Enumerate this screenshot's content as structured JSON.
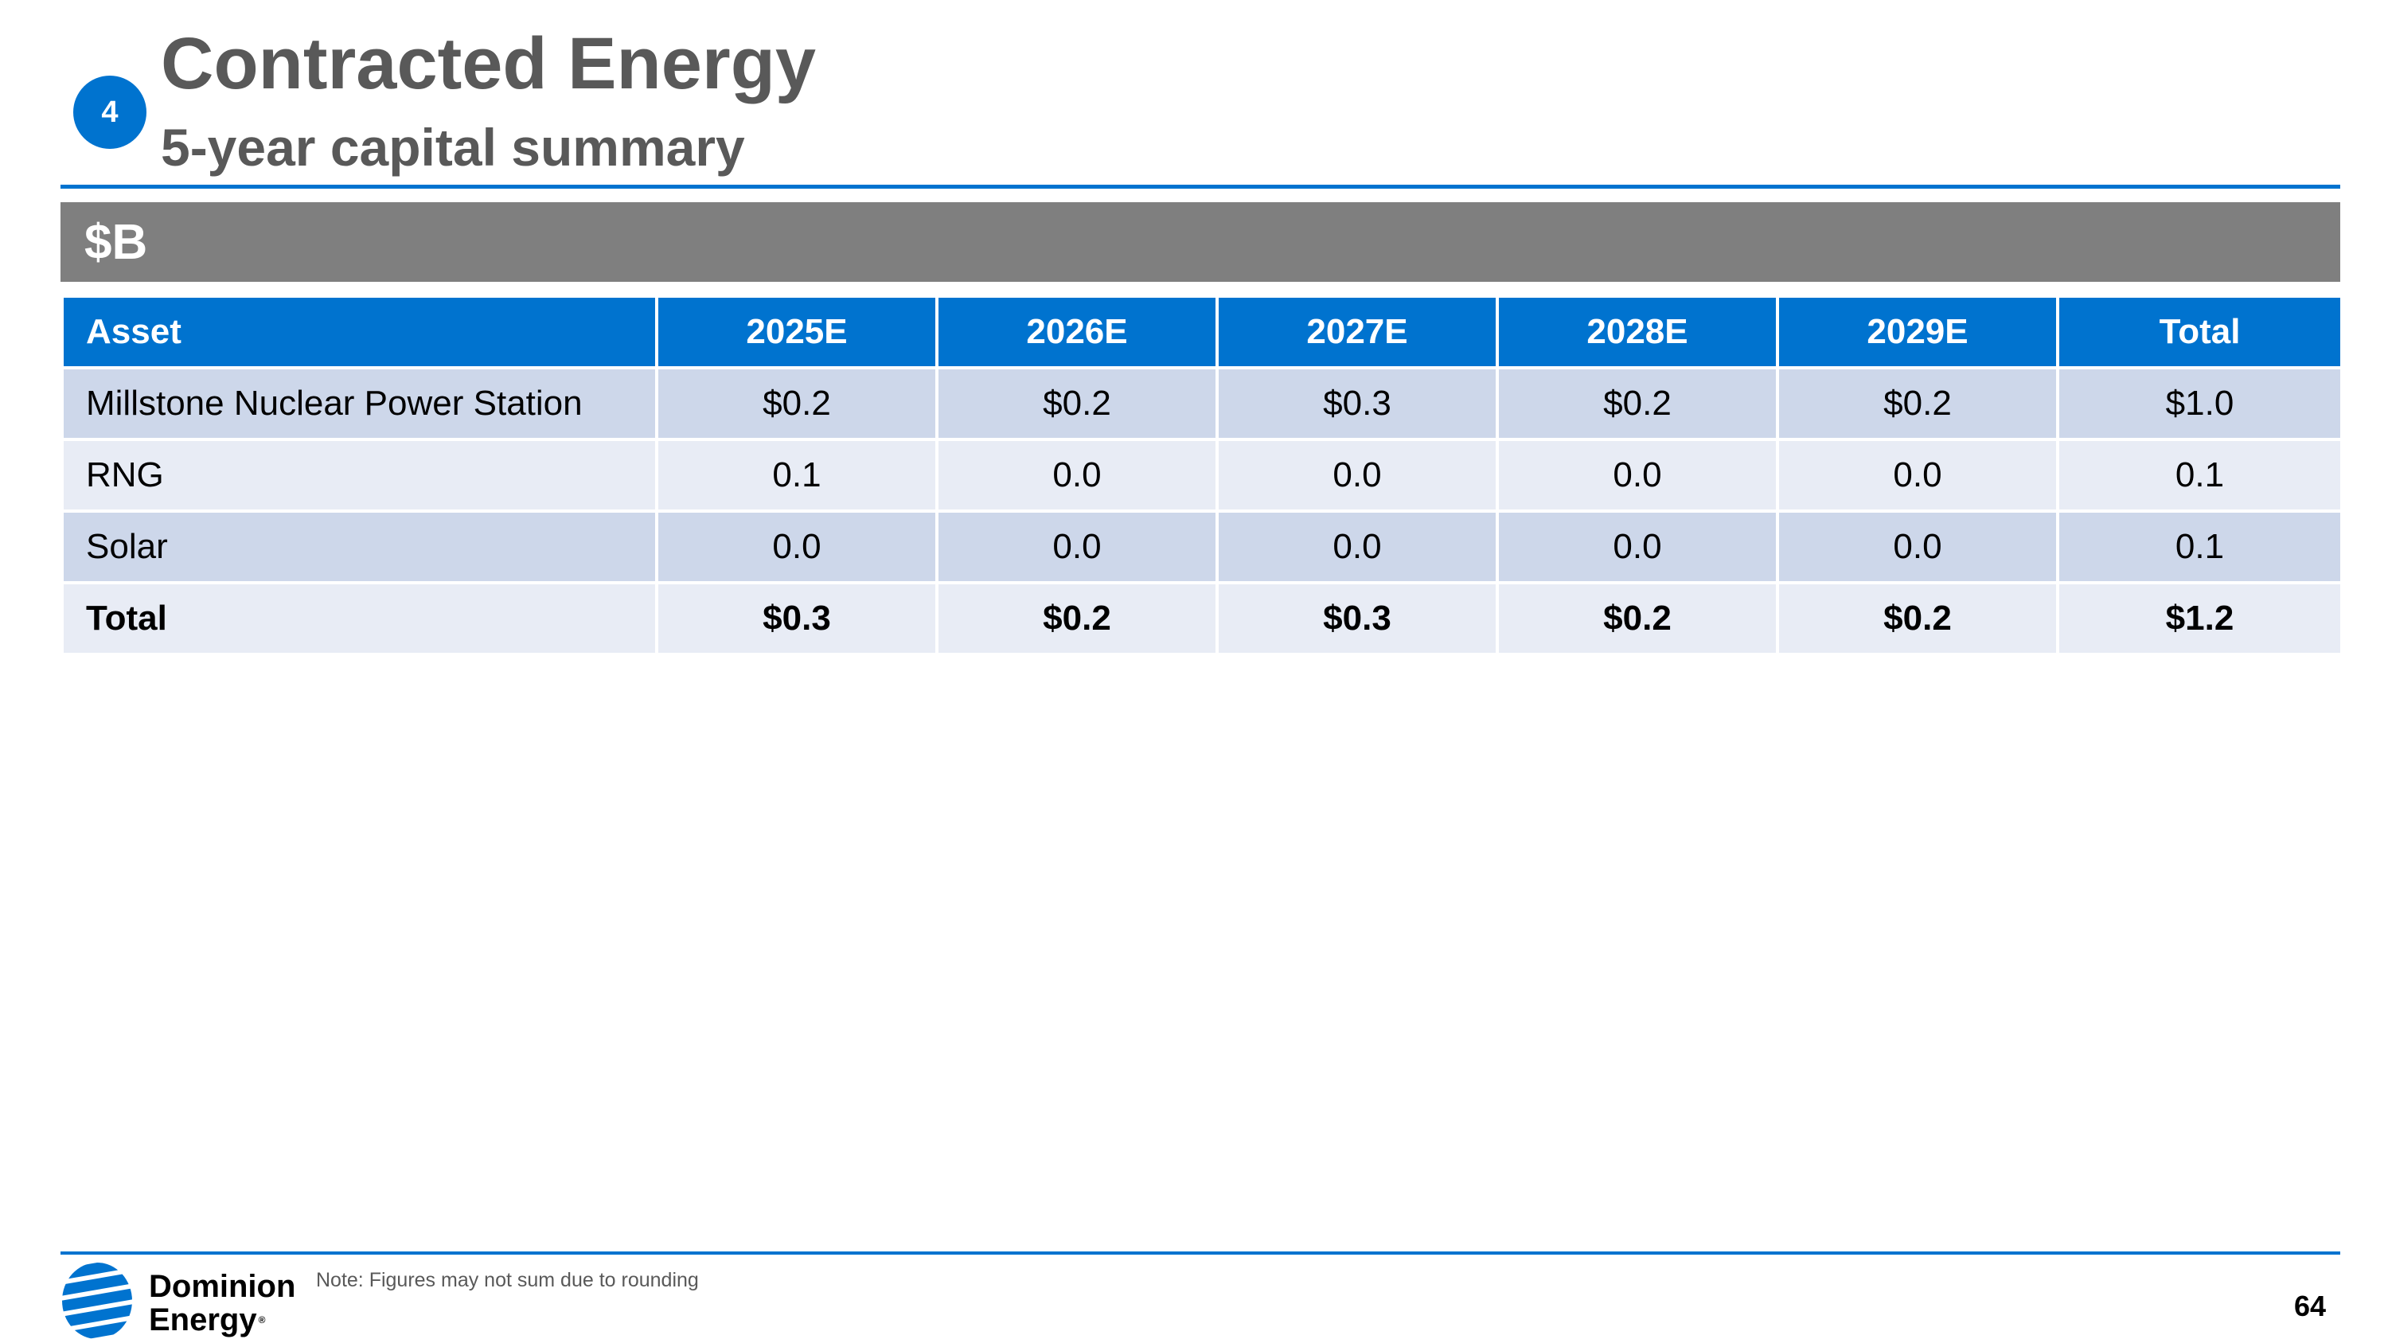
{
  "header": {
    "section_number": "4",
    "title": "Contracted Energy",
    "subtitle": "5-year capital summary"
  },
  "unit_label": "$B",
  "table": {
    "headers": [
      "Asset",
      "2025E",
      "2026E",
      "2027E",
      "2028E",
      "2029E",
      "Total"
    ],
    "rows": [
      [
        "Millstone Nuclear Power Station",
        "$0.2",
        "$0.2",
        "$0.3",
        "$0.2",
        "$0.2",
        "$1.0"
      ],
      [
        "RNG",
        "0.1",
        "0.0",
        "0.0",
        "0.0",
        "0.0",
        "0.1"
      ],
      [
        "Solar",
        "0.0",
        "0.0",
        "0.0",
        "0.0",
        "0.0",
        "0.1"
      ],
      [
        "Total",
        "$0.3",
        "$0.2",
        "$0.3",
        "$0.2",
        "$0.2",
        "$1.2"
      ]
    ]
  },
  "footer": {
    "logo_line1": "Dominion",
    "logo_line2": "Energy",
    "logo_reg": "®",
    "note": "Note: Figures may not sum due to rounding",
    "page_number": "64"
  },
  "colors": {
    "accent_blue": "#0073cf",
    "title_gray": "#595959",
    "unit_bar_gray": "#7f7f7f",
    "row_dark": "#cdd7ea",
    "row_light": "#e8ecf5"
  }
}
